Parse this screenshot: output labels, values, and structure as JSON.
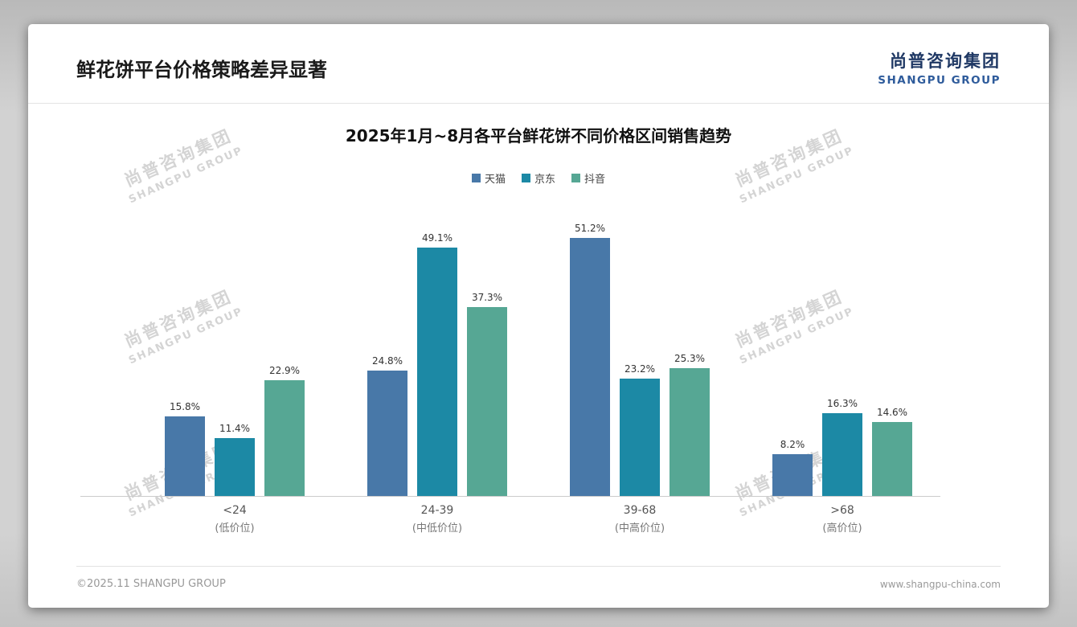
{
  "header": {
    "title": "鲜花饼平台价格策略差异显著",
    "logo_cn": "尚普咨询集团",
    "logo_en": "SHANGPU GROUP"
  },
  "watermark": {
    "cn": "尚普咨询集团",
    "en": "SHANGPU GROUP"
  },
  "footer": {
    "copyright": "©2025.11 SHANGPU GROUP",
    "website": "www.shangpu-china.com"
  },
  "chart_data": {
    "type": "bar",
    "title": "2025年1月~8月各平台鲜花饼不同价格区间销售趋势",
    "categories": [
      "<24",
      "24-39",
      "39-68",
      ">68"
    ],
    "category_sublabels": [
      "(低价位)",
      "(中低价位)",
      "(中高价位)",
      "(高价位)"
    ],
    "series": [
      {
        "name": "天猫",
        "color": "#4878a8",
        "values": [
          15.8,
          24.8,
          51.2,
          8.2
        ]
      },
      {
        "name": "京东",
        "color": "#1c89a5",
        "values": [
          11.4,
          49.1,
          23.2,
          16.3
        ]
      },
      {
        "name": "抖音",
        "color": "#56a794",
        "values": [
          22.9,
          37.3,
          25.3,
          14.6
        ]
      }
    ],
    "value_suffix": "%",
    "xlabel": "",
    "ylabel": "",
    "ylim": [
      0,
      54
    ],
    "grid": false,
    "legend_position": "top"
  }
}
